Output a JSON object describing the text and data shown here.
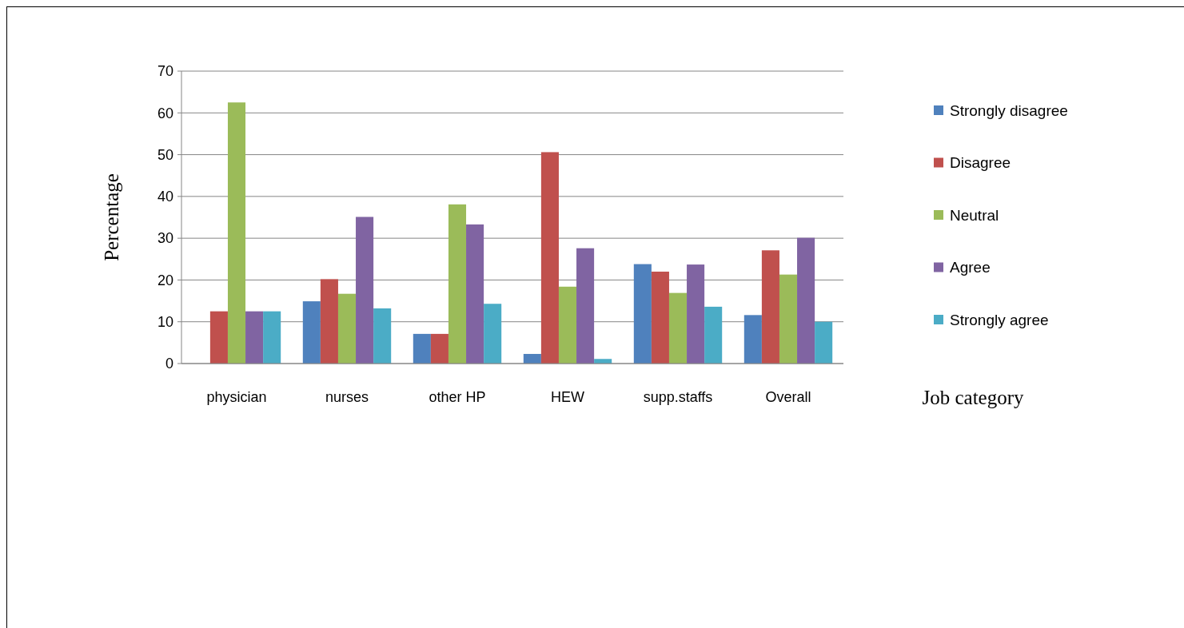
{
  "chart_data": {
    "type": "bar",
    "xlabel": "Job category",
    "ylabel": "Percentage",
    "categories": [
      "physician",
      "nurses",
      "other HP",
      "HEW",
      "supp.staffs",
      "Overall"
    ],
    "series": [
      {
        "name": "Strongly disagree",
        "color": "#4f81bd",
        "values": [
          0,
          14.9,
          7.1,
          2.3,
          23.8,
          11.6
        ]
      },
      {
        "name": "Disagree",
        "color": "#c0504d",
        "values": [
          12.5,
          20.2,
          7.1,
          50.6,
          22.0,
          27.1
        ]
      },
      {
        "name": "Neutral",
        "color": "#9bbb59",
        "values": [
          62.5,
          16.7,
          38.1,
          18.4,
          16.9,
          21.3
        ]
      },
      {
        "name": "Agree",
        "color": "#8064a2",
        "values": [
          12.5,
          35.1,
          33.3,
          27.6,
          23.7,
          30.1
        ]
      },
      {
        "name": "Strongly agree",
        "color": "#4bacc6",
        "values": [
          12.5,
          13.2,
          14.3,
          1.1,
          13.6,
          10.0
        ]
      }
    ],
    "ylim": [
      0,
      70
    ],
    "yticks": [
      0,
      10,
      20,
      30,
      40,
      50,
      60,
      70
    ],
    "grid": "y",
    "legend": "right"
  }
}
